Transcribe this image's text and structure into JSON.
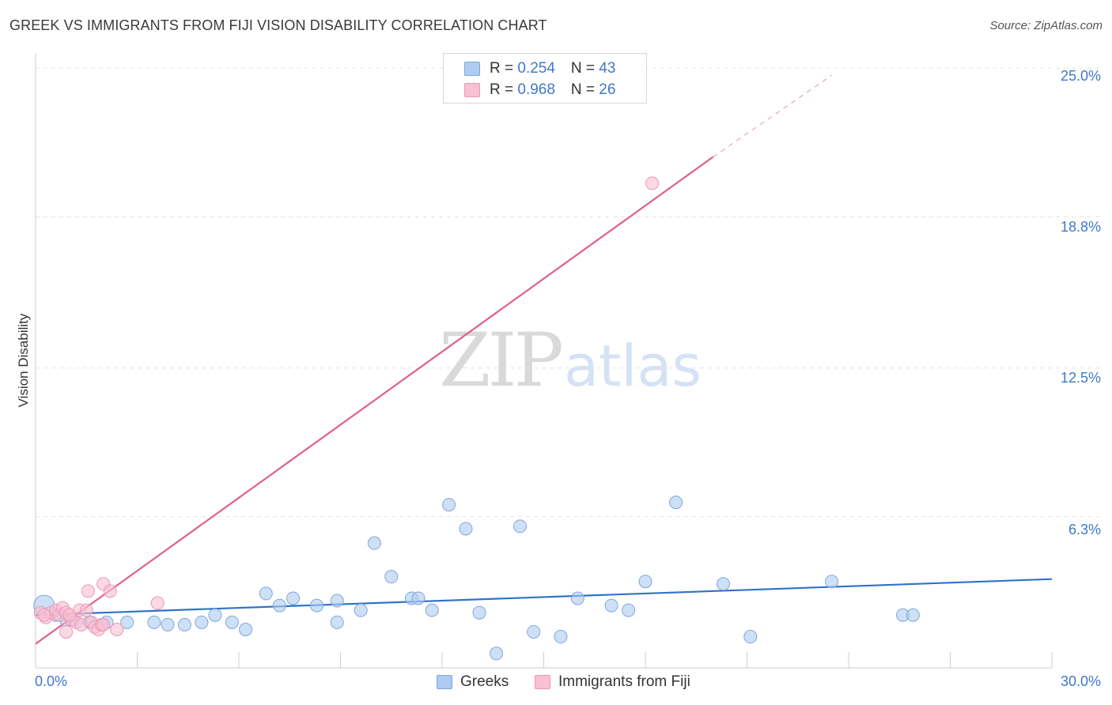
{
  "title": "GREEK VS IMMIGRANTS FROM FIJI VISION DISABILITY CORRELATION CHART",
  "source": "Source: ZipAtlas.com",
  "watermark": {
    "zip": "ZIP",
    "atlas": "atlas"
  },
  "colors": {
    "greeks_fill": "#aecbf0",
    "greeks_stroke": "#7fa6dd",
    "greeks_line": "#2f72c8",
    "fiji_fill": "#f8c0d2",
    "fiji_stroke": "#ee96b4",
    "fiji_line": "#e0608c",
    "tick_color": "#3f78c8",
    "grid": "#e2e2e2"
  },
  "legend": {
    "greeks": {
      "r_label": "R = ",
      "r_value": "0.254",
      "n_label": "N = ",
      "n_value": "43"
    },
    "fiji": {
      "r_label": "R = ",
      "r_value": "0.968",
      "n_label": "N = ",
      "n_value": "26"
    }
  },
  "bottom_legend": {
    "greeks": "Greeks",
    "fiji": "Immigrants from Fiji"
  },
  "chart_data": {
    "type": "scatter",
    "title": "GREEK VS IMMIGRANTS FROM FIJI VISION DISABILITY CORRELATION CHART",
    "xlabel": "",
    "ylabel": "Vision Disability",
    "xlim": [
      0,
      30
    ],
    "ylim": [
      0,
      25.6
    ],
    "x_tick_labels": [
      "0.0%",
      "30.0%"
    ],
    "y_ticks": [
      6.3,
      12.5,
      18.8,
      25.0
    ],
    "y_tick_labels": [
      "6.3%",
      "12.5%",
      "18.8%",
      "25.0%"
    ],
    "series": [
      {
        "name": "Greeks",
        "r": 0.254,
        "n": 43,
        "trend": {
          "x0": 0,
          "y0": 2.2,
          "x1": 30,
          "y1": 3.7,
          "dashed_to": null
        },
        "points": [
          {
            "x": 0.25,
            "y": 2.6,
            "big": true
          },
          {
            "x": 0.6,
            "y": 2.2
          },
          {
            "x": 0.9,
            "y": 2.0
          },
          {
            "x": 1.1,
            "y": 2.0
          },
          {
            "x": 1.6,
            "y": 1.9
          },
          {
            "x": 2.1,
            "y": 1.9
          },
          {
            "x": 2.7,
            "y": 1.9
          },
          {
            "x": 3.5,
            "y": 1.9
          },
          {
            "x": 3.9,
            "y": 1.8
          },
          {
            "x": 4.4,
            "y": 1.8
          },
          {
            "x": 4.9,
            "y": 1.9
          },
          {
            "x": 5.3,
            "y": 2.2
          },
          {
            "x": 5.8,
            "y": 1.9
          },
          {
            "x": 6.2,
            "y": 1.6
          },
          {
            "x": 6.8,
            "y": 3.1
          },
          {
            "x": 7.2,
            "y": 2.6
          },
          {
            "x": 7.6,
            "y": 2.9
          },
          {
            "x": 8.3,
            "y": 2.6
          },
          {
            "x": 8.9,
            "y": 1.9
          },
          {
            "x": 8.9,
            "y": 2.8
          },
          {
            "x": 9.6,
            "y": 2.4
          },
          {
            "x": 10.0,
            "y": 5.2
          },
          {
            "x": 10.5,
            "y": 3.8
          },
          {
            "x": 11.1,
            "y": 2.9
          },
          {
            "x": 11.3,
            "y": 2.9
          },
          {
            "x": 11.7,
            "y": 2.4
          },
          {
            "x": 12.2,
            "y": 6.8
          },
          {
            "x": 12.7,
            "y": 5.8
          },
          {
            "x": 13.1,
            "y": 2.3
          },
          {
            "x": 13.6,
            "y": 0.6
          },
          {
            "x": 14.3,
            "y": 5.9
          },
          {
            "x": 14.7,
            "y": 1.5
          },
          {
            "x": 15.5,
            "y": 1.3
          },
          {
            "x": 16.0,
            "y": 2.9
          },
          {
            "x": 17.0,
            "y": 2.6
          },
          {
            "x": 17.5,
            "y": 2.4
          },
          {
            "x": 18.0,
            "y": 3.6
          },
          {
            "x": 18.9,
            "y": 6.9
          },
          {
            "x": 20.3,
            "y": 3.5
          },
          {
            "x": 21.1,
            "y": 1.3
          },
          {
            "x": 23.5,
            "y": 3.6
          },
          {
            "x": 25.6,
            "y": 2.2
          },
          {
            "x": 25.9,
            "y": 2.2
          }
        ]
      },
      {
        "name": "Immigrants from Fiji",
        "r": 0.968,
        "n": 26,
        "trend": {
          "x0": 0,
          "y0": 1.0,
          "x1": 20.0,
          "y1": 21.3,
          "dashed_to": {
            "x": 23.5,
            "y": 24.7
          }
        },
        "points": [
          {
            "x": 0.15,
            "y": 2.3
          },
          {
            "x": 0.3,
            "y": 2.1
          },
          {
            "x": 0.45,
            "y": 2.3
          },
          {
            "x": 0.6,
            "y": 2.4
          },
          {
            "x": 0.7,
            "y": 2.2
          },
          {
            "x": 0.8,
            "y": 2.5
          },
          {
            "x": 0.9,
            "y": 2.3
          },
          {
            "x": 0.9,
            "y": 1.5
          },
          {
            "x": 1.05,
            "y": 2.0
          },
          {
            "x": 1.2,
            "y": 1.9
          },
          {
            "x": 1.3,
            "y": 2.4
          },
          {
            "x": 1.35,
            "y": 1.8
          },
          {
            "x": 1.5,
            "y": 2.4
          },
          {
            "x": 1.55,
            "y": 3.2
          },
          {
            "x": 1.65,
            "y": 1.9
          },
          {
            "x": 1.75,
            "y": 1.7
          },
          {
            "x": 1.85,
            "y": 1.6
          },
          {
            "x": 1.95,
            "y": 1.8
          },
          {
            "x": 2.0,
            "y": 1.8
          },
          {
            "x": 2.0,
            "y": 3.5
          },
          {
            "x": 2.2,
            "y": 3.2
          },
          {
            "x": 2.4,
            "y": 1.6
          },
          {
            "x": 3.6,
            "y": 2.7
          },
          {
            "x": 0.25,
            "y": 2.2
          },
          {
            "x": 1.0,
            "y": 2.2
          },
          {
            "x": 18.2,
            "y": 20.2
          }
        ]
      }
    ]
  }
}
